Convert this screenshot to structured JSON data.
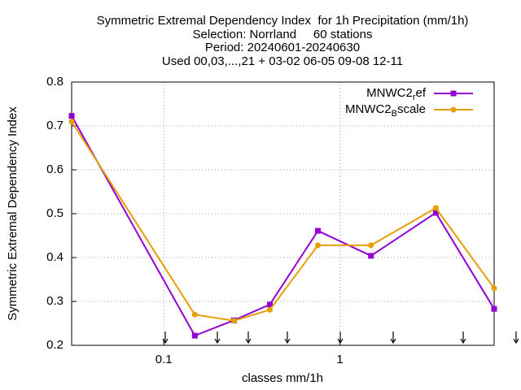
{
  "chart_data": {
    "type": "line",
    "title": [
      "Symmetric Extremal Dependency Index  for 1h Precipitation (mm/1h)",
      "Selection: Norrland     60 stations",
      "Period: 20240601-20240630",
      "Used 00,03,...,21 + 03-02 06-05 09-08 12-11"
    ],
    "xlabel": "classes mm/1h",
    "ylabel": "Symmetric Extremal Dependency Index",
    "x": [
      0.03,
      0.15,
      0.25,
      0.4,
      0.75,
      1.5,
      3.5,
      7.5
    ],
    "series": [
      {
        "name": "MNWC2_ref",
        "color": "#9400d3",
        "values": [
          0.723,
          0.222,
          0.257,
          0.293,
          0.461,
          0.404,
          0.502,
          0.283
        ]
      },
      {
        "name": "MNWC2_Bscale",
        "color": "#e69f00",
        "values": [
          0.71,
          0.27,
          0.256,
          0.281,
          0.428,
          0.428,
          0.513,
          0.33
        ]
      }
    ],
    "xlim": [
      0.03,
      7.5
    ],
    "xticks": [
      0.1,
      1
    ],
    "xlog": true,
    "ylim": [
      0.2,
      0.8
    ],
    "yticks": [
      0.2,
      0.3,
      0.4,
      0.5,
      0.6,
      0.7,
      0.8
    ],
    "grid": true,
    "legend": "top-right"
  }
}
